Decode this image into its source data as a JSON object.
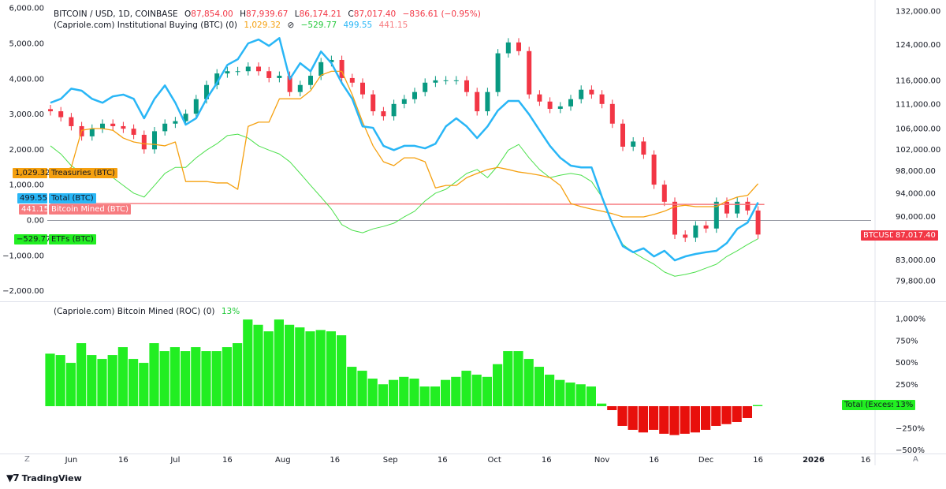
{
  "header": {
    "symbol": "BITCOIN / USD, 1D, COINBASE",
    "open_label": "O",
    "open": "87,854.00",
    "high_label": "H",
    "high": "87,939.67",
    "low_label": "L",
    "low": "86,174.21",
    "close_label": "C",
    "close": "87,017.40",
    "change": "−836.61 (−0.95%)",
    "indicator": "(Capriole.com) Institutional Buying (BTC) (0)",
    "treasuries_value": "1,029.32",
    "hidden_icon": "eye-off-icon",
    "etfs_value": "−529.77",
    "total_value": "499.55",
    "mined_value": "441.15"
  },
  "lower_legend": {
    "indicator": "(Capriole.com) Bitcoin Mined (ROC) (0)",
    "value": "13%"
  },
  "overlay_labels": {
    "treasuries": {
      "value": "1,029.32",
      "name": "Treasuries (BTC)"
    },
    "total": {
      "value": "499.55",
      "name": "Total (BTC)"
    },
    "mined": {
      "value": "441.15",
      "name": "Bitcoin Mined (BTC)"
    },
    "etfs": {
      "value": "−529.77",
      "name": "ETFs (BTC)"
    }
  },
  "price_tag": {
    "symbol": "BTCUSD",
    "value": "87,017.40"
  },
  "excess_tag": {
    "name": "Total (Excess)",
    "value": "13%"
  },
  "footer": {
    "brand": "TradingView",
    "logo_icon": "tradingview-logo-icon"
  },
  "colors": {
    "up": "#089981",
    "down": "#f23645",
    "total": "#29b6f6",
    "treasuries": "#f5a00f",
    "etfs": "#4ce04c",
    "mined": "#f77c80",
    "roc_pos": "#22ee22",
    "roc_neg": "#e8100c"
  },
  "chart_data": [
    {
      "type": "candlestick+line",
      "title": "BITCOIN / USD, 1D, COINBASE",
      "right_axis": {
        "scale": "log",
        "ticks": [
          "132,000.00",
          "124,000.00",
          "116,000.00",
          "111,000.00",
          "106,000.00",
          "102,000.00",
          "98,000.00",
          "94,000.00",
          "90,000.00",
          "83,000.00",
          "79,800.00"
        ]
      },
      "left_axis": {
        "scale": "linear",
        "ticks": [
          "6,000.00",
          "5,000.00",
          "4,000.00",
          "3,000.00",
          "2,000.00",
          "1,000.00",
          "0.00",
          "−1,000.00",
          "−2,000.00"
        ],
        "ylim": [
          -2000,
          6000
        ]
      },
      "x": [
        "2025-05-26",
        "2025-05-29",
        "2025-06-01",
        "2025-06-04",
        "2025-06-07",
        "2025-06-10",
        "2025-06-13",
        "2025-06-16",
        "2025-06-19",
        "2025-06-22",
        "2025-06-25",
        "2025-06-28",
        "2025-07-01",
        "2025-07-04",
        "2025-07-07",
        "2025-07-10",
        "2025-07-13",
        "2025-07-16",
        "2025-07-19",
        "2025-07-22",
        "2025-07-25",
        "2025-07-28",
        "2025-07-31",
        "2025-08-03",
        "2025-08-06",
        "2025-08-09",
        "2025-08-12",
        "2025-08-15",
        "2025-08-18",
        "2025-08-21",
        "2025-08-24",
        "2025-08-27",
        "2025-08-30",
        "2025-09-02",
        "2025-09-05",
        "2025-09-08",
        "2025-09-11",
        "2025-09-14",
        "2025-09-17",
        "2025-09-20",
        "2025-09-23",
        "2025-09-26",
        "2025-09-29",
        "2025-10-02",
        "2025-10-05",
        "2025-10-08",
        "2025-10-11",
        "2025-10-14",
        "2025-10-17",
        "2025-10-20",
        "2025-10-23",
        "2025-10-26",
        "2025-10-29",
        "2025-11-01",
        "2025-11-04",
        "2025-11-07",
        "2025-11-10",
        "2025-11-13",
        "2025-11-16",
        "2025-11-19",
        "2025-11-22",
        "2025-11-25",
        "2025-11-28",
        "2025-12-01",
        "2025-12-04",
        "2025-12-07",
        "2025-12-10",
        "2025-12-13",
        "2025-12-16"
      ],
      "btc_close": [
        109500,
        108300,
        106500,
        104500,
        106000,
        107000,
        106500,
        106000,
        104800,
        102000,
        105500,
        107000,
        107500,
        109000,
        112000,
        115000,
        117500,
        118000,
        118000,
        119000,
        118000,
        116500,
        117000,
        113500,
        115000,
        117000,
        120000,
        120500,
        116500,
        115500,
        113000,
        109500,
        108500,
        111000,
        112000,
        113500,
        115500,
        116000,
        116000,
        116000,
        113500,
        109500,
        113500,
        122000,
        124500,
        122500,
        113000,
        111500,
        110000,
        110500,
        112000,
        114000,
        113000,
        111000,
        107000,
        102500,
        103500,
        101000,
        95500,
        92500,
        87000,
        86500,
        88500,
        88000,
        92500,
        90500,
        92500,
        91000,
        87017.4
      ],
      "series": [
        {
          "name": "Treasuries (BTC)",
          "values": [
            1270,
            1320,
            1490,
            2540,
            2590,
            2590,
            2540,
            2320,
            2210,
            2160,
            2140,
            2100,
            2210,
            1090,
            1090,
            1090,
            1050,
            1050,
            870,
            2650,
            2770,
            2770,
            3430,
            3430,
            3430,
            3660,
            4100,
            4210,
            4210,
            3550,
            2770,
            2100,
            1650,
            1540,
            1760,
            1760,
            1650,
            910,
            980,
            980,
            1200,
            1320,
            1430,
            1490,
            1430,
            1360,
            1320,
            1270,
            1200,
            980,
            470,
            380,
            310,
            250,
            180,
            90,
            90,
            90,
            160,
            250,
            380,
            420,
            380,
            380,
            380,
            540,
            650,
            700,
            1029.32
          ]
        },
        {
          "name": "Total (BTC)",
          "values": [
            3320,
            3430,
            3720,
            3660,
            3430,
            3320,
            3500,
            3550,
            3430,
            2880,
            3430,
            3810,
            3320,
            2700,
            2880,
            3430,
            3880,
            4390,
            4550,
            5000,
            5110,
            4930,
            5150,
            3990,
            4440,
            4210,
            4770,
            4440,
            3880,
            3430,
            2650,
            2610,
            2100,
            1980,
            2100,
            2100,
            2030,
            2160,
            2650,
            2880,
            2650,
            2320,
            2650,
            3100,
            3370,
            3370,
            2990,
            2540,
            2100,
            1760,
            1540,
            1490,
            1490,
            650,
            -110,
            -740,
            -910,
            -800,
            -1030,
            -870,
            -1140,
            -1030,
            -960,
            -910,
            -870,
            -650,
            -250,
            -70,
            499.55
          ]
        },
        {
          "name": "ETFs (BTC)",
          "values": [
            2100,
            1870,
            1540,
            1320,
            1270,
            1200,
            1200,
            980,
            760,
            650,
            980,
            1320,
            1490,
            1490,
            1760,
            1980,
            2160,
            2390,
            2430,
            2320,
            2100,
            1980,
            1870,
            1650,
            1320,
            980,
            650,
            310,
            -130,
            -290,
            -360,
            -250,
            -180,
            -90,
            90,
            250,
            540,
            760,
            870,
            1090,
            1320,
            1430,
            1200,
            1540,
            1980,
            2140,
            1760,
            1430,
            1200,
            1270,
            1320,
            1270,
            1090,
            650,
            -130,
            -690,
            -910,
            -1090,
            -1250,
            -1470,
            -1590,
            -1540,
            -1470,
            -1360,
            -1250,
            -1030,
            -870,
            -690,
            -529.77
          ]
        },
        {
          "name": "Bitcoin Mined (BTC)",
          "values_start_end": [
            470,
            441.15
          ]
        }
      ]
    },
    {
      "type": "bar",
      "title": "(Capriole.com) Bitcoin Mined (ROC) (0)",
      "y_ticks": [
        "1,000%",
        "750%",
        "500%",
        "250%",
        "−250%",
        "−500%"
      ],
      "ylim": [
        -500,
        1000
      ],
      "x_ref": "same as chart_data[0].x",
      "values": [
        600,
        585,
        495,
        720,
        585,
        540,
        585,
        675,
        540,
        495,
        720,
        630,
        675,
        630,
        675,
        630,
        630,
        675,
        720,
        990,
        930,
        855,
        990,
        930,
        900,
        855,
        870,
        855,
        810,
        450,
        405,
        315,
        250,
        300,
        335,
        315,
        225,
        225,
        300,
        335,
        405,
        360,
        335,
        480,
        630,
        630,
        540,
        450,
        360,
        300,
        270,
        250,
        225,
        30,
        -45,
        -225,
        -270,
        -300,
        -270,
        -315,
        -330,
        -315,
        -300,
        -270,
        -225,
        -205,
        -180,
        -135,
        13
      ]
    }
  ],
  "x_axis": {
    "labels": [
      "Jun",
      "16",
      "Jul",
      "16",
      "Aug",
      "16",
      "Sep",
      "16",
      "Oct",
      "16",
      "Nov",
      "16",
      "Dec",
      "16",
      "2026",
      "16"
    ],
    "label_dates": [
      "2025-06-01",
      "2025-06-16",
      "2025-07-01",
      "2025-07-16",
      "2025-08-01",
      "2025-08-16",
      "2025-09-01",
      "2025-09-16",
      "2025-10-01",
      "2025-10-16",
      "2025-11-01",
      "2025-11-16",
      "2025-12-01",
      "2025-12-16",
      "2026-01-01",
      "2026-01-16"
    ],
    "left_button": "Z",
    "right_button": "A"
  }
}
